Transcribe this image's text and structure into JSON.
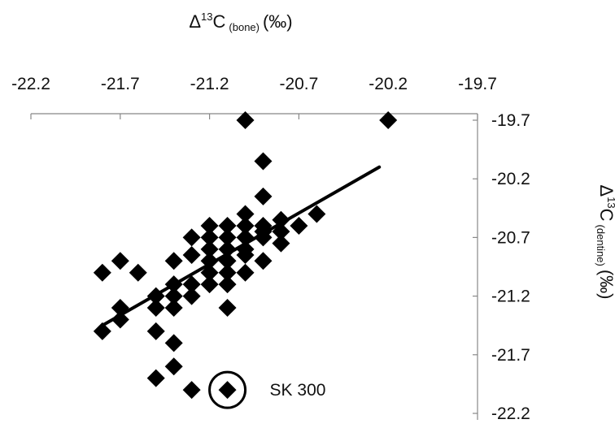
{
  "chart_data": {
    "type": "scatter",
    "x_axis": {
      "label_symbol": "Δ",
      "label_sup": "13",
      "label_main": "C",
      "label_sub": "(bone)",
      "label_unit": "(‰)",
      "range": [
        -22.2,
        -19.7
      ],
      "ticks": [
        -22.2,
        -21.7,
        -21.2,
        -20.7,
        -20.2,
        -19.7
      ],
      "tick_labels": [
        "-22.2",
        "-21.7",
        "-21.2",
        "-20.7",
        "-20.2",
        "-19.7"
      ],
      "position": "top"
    },
    "y_axis": {
      "label_symbol": "Δ",
      "label_sup": "13",
      "label_main": "C",
      "label_sub": "(dentine)",
      "label_unit": "(‰)",
      "range": [
        -22.2,
        -19.7
      ],
      "inverted": true,
      "ticks": [
        -19.7,
        -20.2,
        -20.7,
        -21.2,
        -21.7,
        -22.2
      ],
      "tick_labels": [
        "-19.7",
        "-20.2",
        "-20.7",
        "-21.2",
        "-21.7",
        "-22.2"
      ],
      "position": "right"
    },
    "grid": false,
    "marker": "diamond",
    "marker_color": "#000000",
    "points": [
      [
        -21.0,
        -19.7
      ],
      [
        -20.2,
        -19.7
      ],
      [
        -20.9,
        -20.05
      ],
      [
        -20.9,
        -20.35
      ],
      [
        -20.8,
        -20.55
      ],
      [
        -20.6,
        -20.5
      ],
      [
        -20.7,
        -20.6
      ],
      [
        -21.0,
        -20.5
      ],
      [
        -20.8,
        -20.75
      ],
      [
        -20.9,
        -20.65
      ],
      [
        -20.8,
        -20.65
      ],
      [
        -21.2,
        -20.6
      ],
      [
        -21.1,
        -20.6
      ],
      [
        -21.0,
        -20.6
      ],
      [
        -20.9,
        -20.6
      ],
      [
        -21.2,
        -20.7
      ],
      [
        -21.1,
        -20.7
      ],
      [
        -21.0,
        -20.7
      ],
      [
        -20.9,
        -20.7
      ],
      [
        -21.3,
        -20.7
      ],
      [
        -21.2,
        -20.8
      ],
      [
        -21.1,
        -20.8
      ],
      [
        -21.0,
        -20.8
      ],
      [
        -21.1,
        -20.9
      ],
      [
        -21.2,
        -20.9
      ],
      [
        -21.3,
        -20.85
      ],
      [
        -21.4,
        -20.9
      ],
      [
        -21.0,
        -20.85
      ],
      [
        -20.9,
        -20.9
      ],
      [
        -21.2,
        -21.0
      ],
      [
        -21.1,
        -21.0
      ],
      [
        -21.0,
        -21.0
      ],
      [
        -21.3,
        -21.1
      ],
      [
        -21.2,
        -21.1
      ],
      [
        -21.1,
        -21.1
      ],
      [
        -21.4,
        -21.1
      ],
      [
        -21.3,
        -21.2
      ],
      [
        -21.4,
        -21.2
      ],
      [
        -21.5,
        -21.2
      ],
      [
        -21.4,
        -21.3
      ],
      [
        -21.5,
        -21.3
      ],
      [
        -21.8,
        -21.0
      ],
      [
        -21.7,
        -20.9
      ],
      [
        -21.6,
        -21.0
      ],
      [
        -21.7,
        -21.3
      ],
      [
        -21.7,
        -21.4
      ],
      [
        -21.8,
        -21.5
      ],
      [
        -21.5,
        -21.5
      ],
      [
        -21.4,
        -21.6
      ],
      [
        -21.4,
        -21.8
      ],
      [
        -21.5,
        -21.9
      ],
      [
        -21.3,
        -22.0
      ],
      [
        -21.1,
        -21.3
      ],
      [
        -21.1,
        -22.0
      ]
    ],
    "trendline": {
      "x": [
        -21.8,
        -20.25
      ],
      "y": [
        -21.45,
        -20.1
      ]
    },
    "annotation": {
      "text": "SK 300",
      "point": [
        -21.1,
        -22.0
      ],
      "circled": true
    }
  }
}
